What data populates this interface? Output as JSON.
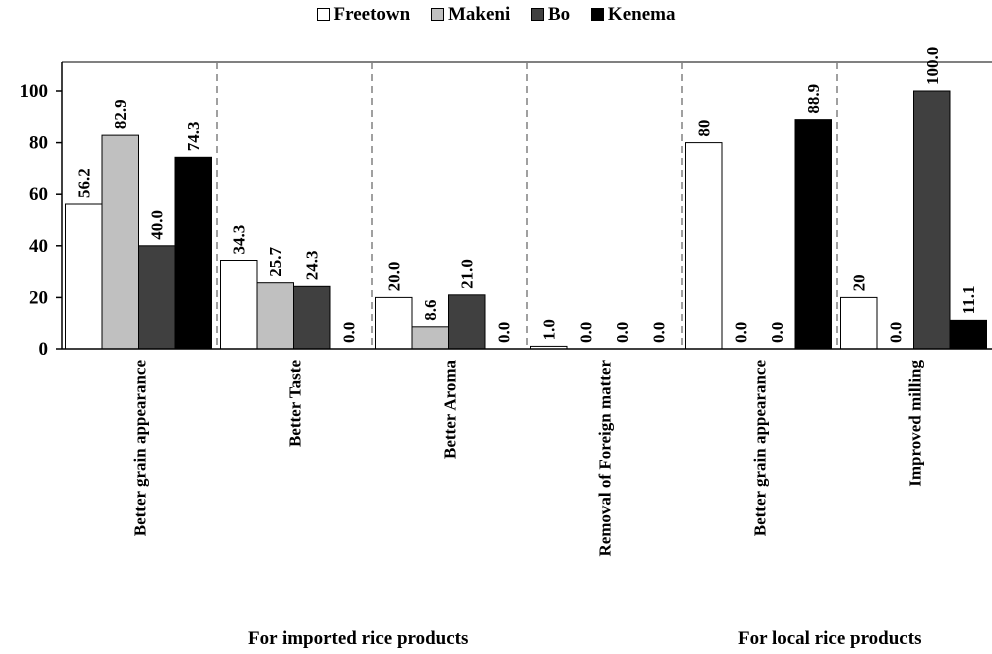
{
  "colors": {
    "Freetown": "#ffffff",
    "Makeni": "#c0c0c0",
    "Bo": "#404040",
    "Kenema": "#000000",
    "grid_separator": "#808080"
  },
  "legend": [
    {
      "name": "Freetown"
    },
    {
      "name": "Makeni"
    },
    {
      "name": "Bo"
    },
    {
      "name": "Kenema"
    }
  ],
  "group_labels": {
    "imported": "For imported rice products",
    "local": "For local rice products"
  },
  "chart_data": {
    "type": "bar",
    "categories": [
      "Better grain appearance",
      "Better Taste",
      "Better Aroma",
      "Removal of Foreign matter",
      "Better grain appearance",
      "Improved milling"
    ],
    "groups": [
      {
        "label": "For imported rice products",
        "categories": [
          "Better grain appearance",
          "Better Taste",
          "Better Aroma",
          "Removal of Foreign matter"
        ]
      },
      {
        "label": "For local rice products",
        "categories": [
          "Better grain appearance",
          "Improved milling"
        ]
      }
    ],
    "series": [
      {
        "name": "Freetown",
        "values": [
          56.2,
          34.3,
          20.0,
          1.0,
          80,
          20
        ],
        "labels": [
          "56.2",
          "34.3",
          "20.0",
          "1.0",
          "80",
          "20"
        ]
      },
      {
        "name": "Makeni",
        "values": [
          82.9,
          25.7,
          8.6,
          0.0,
          0.0,
          0.0
        ],
        "labels": [
          "82.9",
          "25.7",
          "8.6",
          "0.0",
          "0.0",
          "0.0"
        ]
      },
      {
        "name": "Bo",
        "values": [
          40.0,
          24.3,
          21.0,
          0.0,
          0.0,
          100.0
        ],
        "labels": [
          "40.0",
          "24.3",
          "21.0",
          "0.0",
          "0.0",
          "100.0"
        ]
      },
      {
        "name": "Kenema",
        "values": [
          74.3,
          0.0,
          0.0,
          0.0,
          88.9,
          11.1
        ],
        "labels": [
          "74.3",
          "0.0",
          "0.0",
          "0.0",
          "88.9",
          "11.1"
        ]
      }
    ],
    "yticks": [
      "0",
      "20",
      "40",
      "60",
      "80",
      "100"
    ],
    "ylim": [
      0,
      110
    ],
    "grid": false,
    "category_separators": "dashed",
    "legend_position": "top-center"
  }
}
